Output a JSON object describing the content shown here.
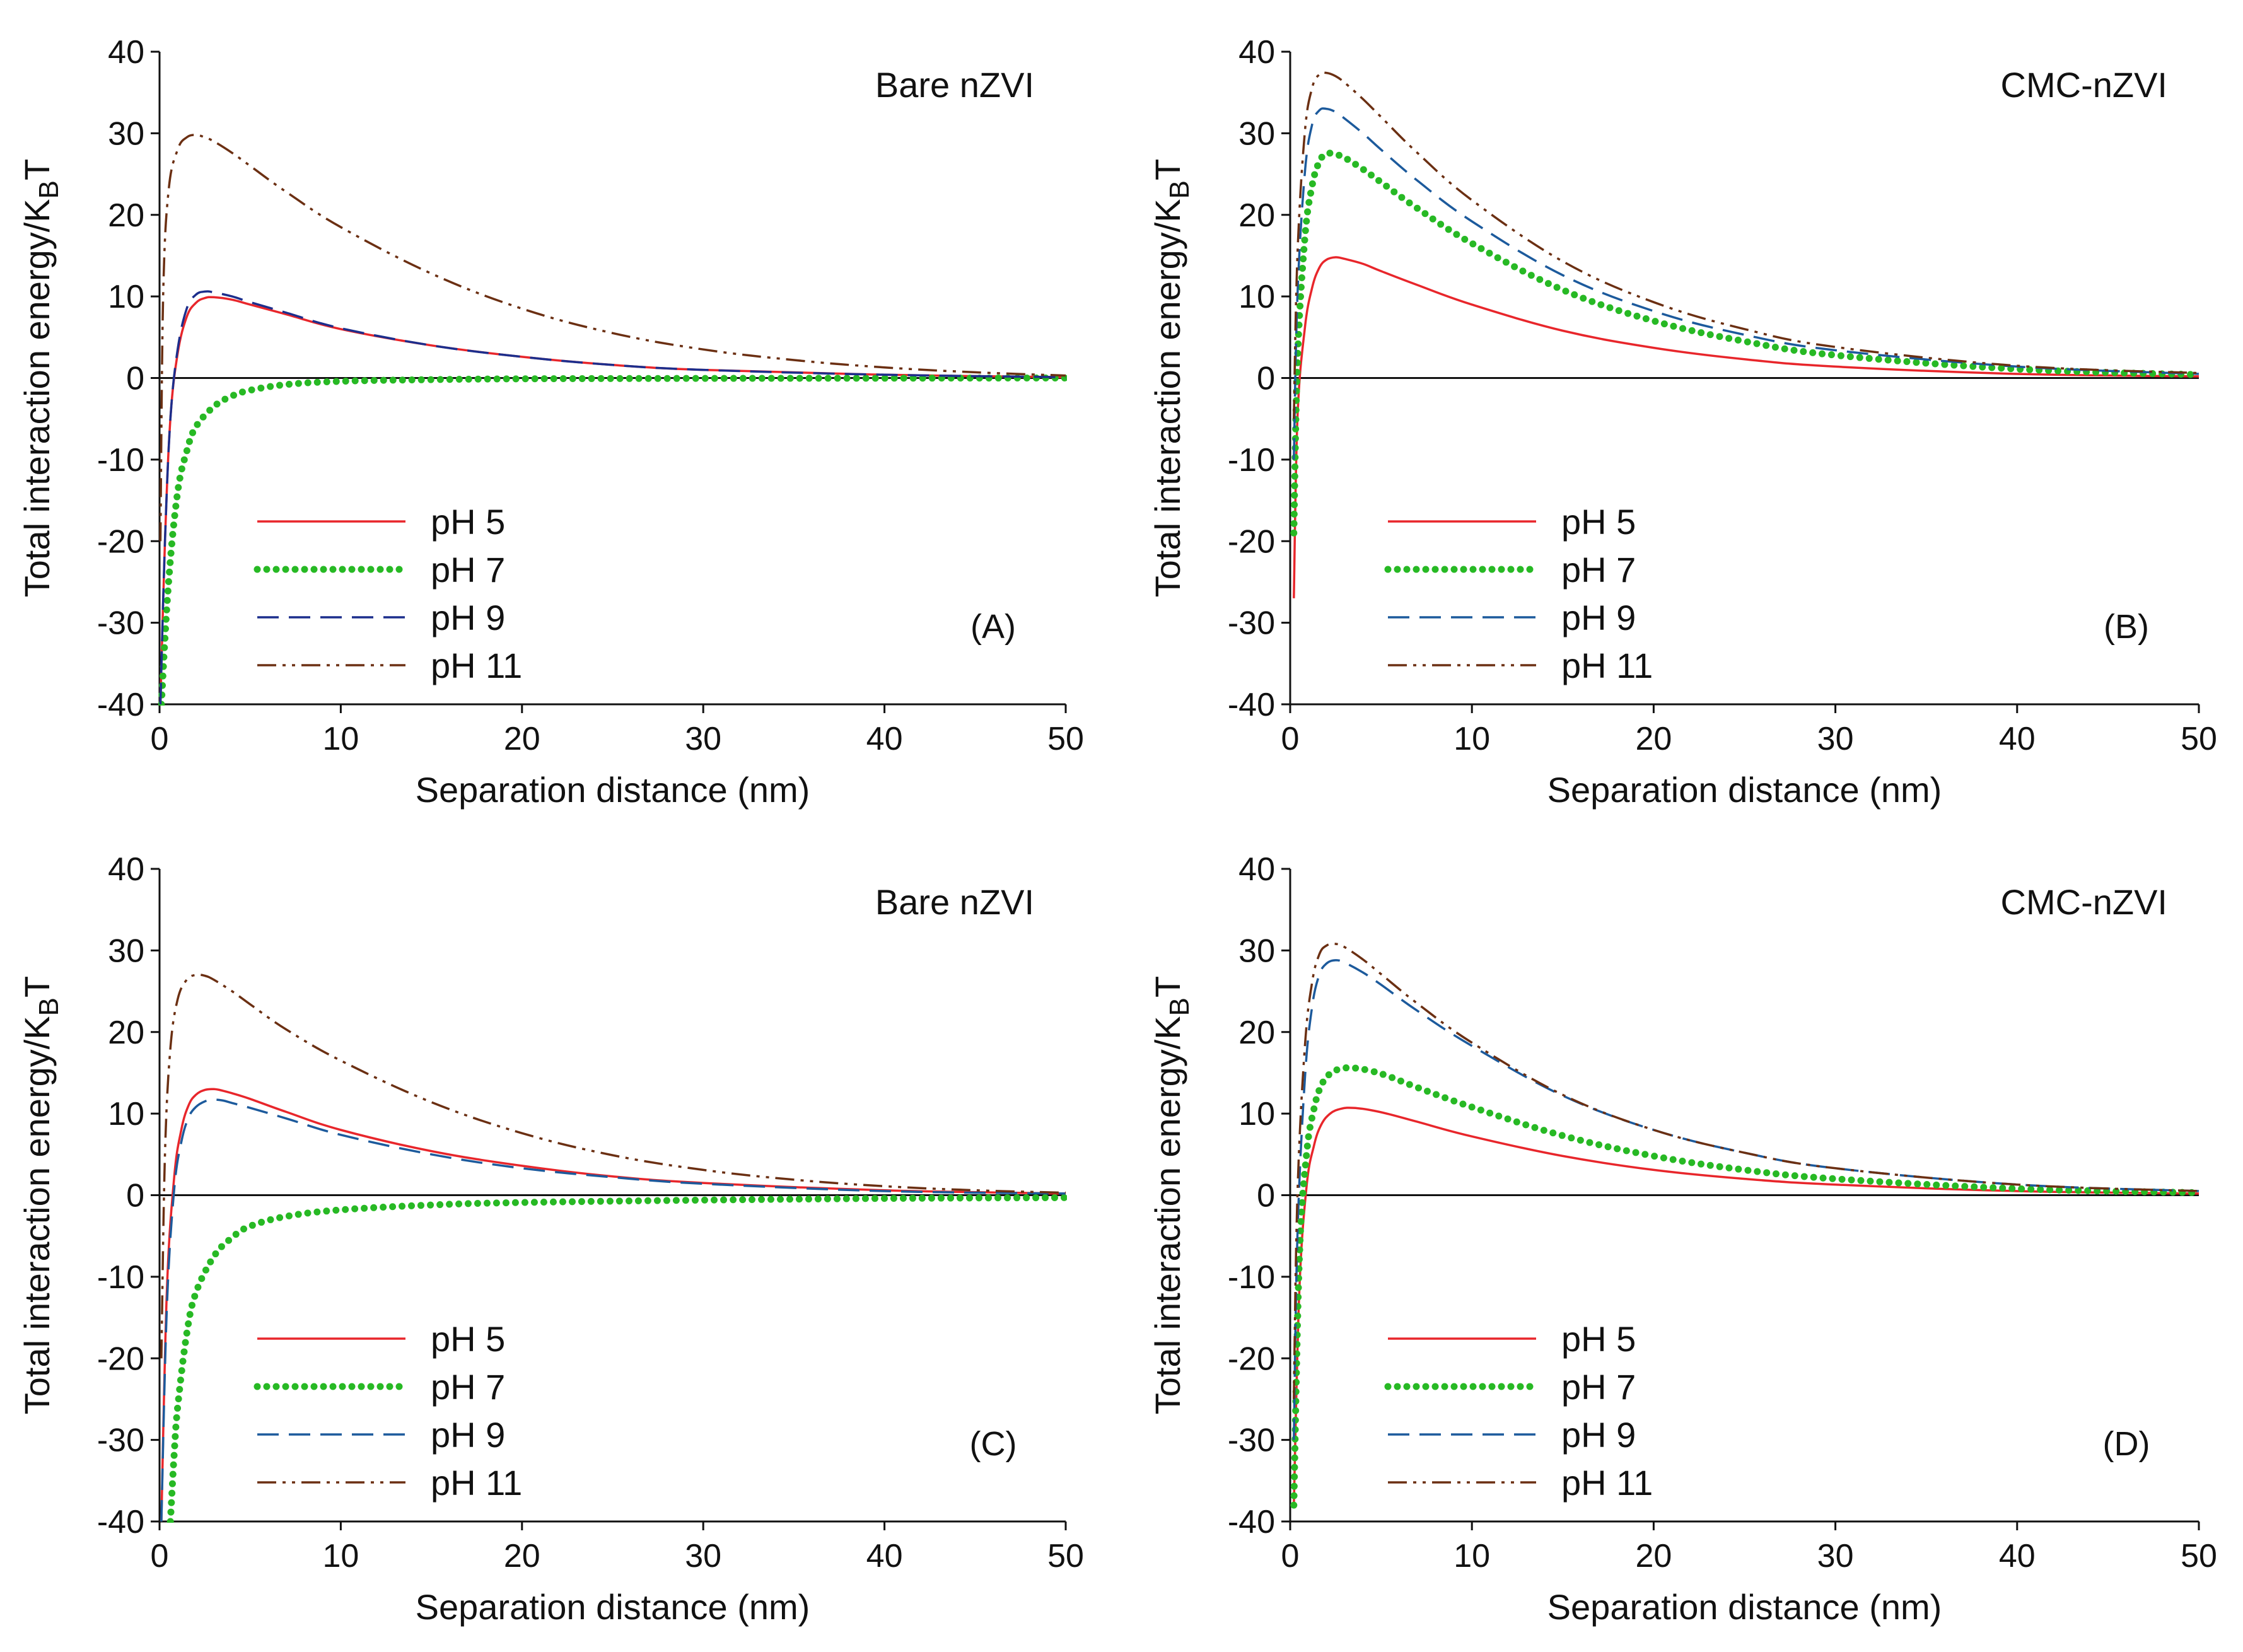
{
  "figure": {
    "accent_colors": {
      "pH 5": "#e8262b",
      "pH 7": "#27b924",
      "pH 9": "#1c2e8c",
      "pH 11": "#6b2f12",
      "axis": "#111111"
    }
  },
  "chart_data": [
    {
      "id": "A",
      "type": "line",
      "title": "Bare nZVI",
      "panel_label": "(A)",
      "xlabel": "Separation distance (nm)",
      "ylabel": "Total interaction energy/K",
      "ylabel_sub": "B",
      "ylabel_tail": "T",
      "xlim": [
        0,
        50
      ],
      "ylim": [
        -40,
        40
      ],
      "xticks": [
        0,
        10,
        20,
        30,
        40,
        50
      ],
      "yticks": [
        40,
        30,
        20,
        10,
        0,
        -10,
        -20,
        -30,
        -40
      ],
      "series": [
        {
          "name": "pH 5",
          "style": "solid",
          "color": "#e8262b",
          "x": [
            0.05,
            0.3,
            0.6,
            1,
            1.5,
            2,
            2.5,
            3,
            4,
            5,
            7,
            10,
            15,
            20,
            25,
            30,
            40,
            50
          ],
          "y": [
            -45,
            -20,
            -5,
            3,
            7.5,
            9.2,
            9.8,
            9.9,
            9.6,
            9.0,
            7.8,
            6.0,
            4.0,
            2.6,
            1.6,
            1.0,
            0.4,
            0.1
          ]
        },
        {
          "name": "pH 7",
          "style": "dotted",
          "color": "#27b924",
          "x": [
            0.1,
            0.5,
            1,
            1.5,
            2,
            3,
            4,
            5,
            7,
            10,
            15,
            20,
            30,
            40,
            50
          ],
          "y": [
            -40,
            -25,
            -14,
            -9,
            -6,
            -3.5,
            -2.2,
            -1.5,
            -0.8,
            -0.4,
            -0.2,
            -0.1,
            -0.05,
            -0.02,
            0
          ]
        },
        {
          "name": "pH 9",
          "style": "dashed",
          "color": "#1c2e8c",
          "x": [
            0.05,
            0.3,
            0.6,
            1,
            1.5,
            2,
            2.5,
            3,
            4,
            5,
            7,
            10,
            15,
            20,
            25,
            30,
            40,
            50
          ],
          "y": [
            -45,
            -20,
            -5,
            3.5,
            8.5,
            10.2,
            10.6,
            10.5,
            10.0,
            9.3,
            8.0,
            6.1,
            4.0,
            2.6,
            1.6,
            1.0,
            0.4,
            0.1
          ]
        },
        {
          "name": "pH 11",
          "style": "dashdotdot",
          "color": "#6b2f12",
          "x": [
            0.05,
            0.2,
            0.5,
            1,
            1.5,
            2,
            2.5,
            3,
            4,
            5,
            7,
            10,
            15,
            20,
            25,
            30,
            35,
            40,
            45,
            50
          ],
          "y": [
            -20,
            10,
            23,
            28,
            29.5,
            29.8,
            29.5,
            29.0,
            27.6,
            26.0,
            22.8,
            18.5,
            12.8,
            8.5,
            5.5,
            3.5,
            2.2,
            1.3,
            0.7,
            0.3
          ]
        }
      ],
      "legend": [
        "pH 5",
        "pH 7",
        "pH 9",
        "pH 11"
      ]
    },
    {
      "id": "B",
      "type": "line",
      "title": "CMC-nZVI",
      "panel_label": "(B)",
      "xlabel": "Separation distance (nm)",
      "ylabel": "Total interaction energy/K",
      "ylabel_sub": "B",
      "ylabel_tail": "T",
      "xlim": [
        0,
        50
      ],
      "ylim": [
        -40,
        40
      ],
      "xticks": [
        0,
        10,
        20,
        30,
        40,
        50
      ],
      "yticks": [
        40,
        30,
        20,
        10,
        0,
        -10,
        -20,
        -30,
        -40
      ],
      "series": [
        {
          "name": "pH 5",
          "style": "solid",
          "color": "#e8262b",
          "x": [
            0.2,
            0.4,
            0.8,
            1.2,
            1.6,
            2,
            2.5,
            3,
            4,
            5,
            7,
            10,
            15,
            20,
            25,
            30,
            40,
            50
          ],
          "y": [
            -27,
            -5,
            6,
            11,
            13.5,
            14.5,
            14.8,
            14.6,
            14.0,
            13.1,
            11.4,
            9.0,
            5.8,
            3.7,
            2.3,
            1.4,
            0.5,
            0.2
          ]
        },
        {
          "name": "pH 7",
          "style": "dotted",
          "color": "#27b924",
          "x": [
            0.2,
            0.4,
            0.8,
            1.2,
            1.6,
            2,
            2.5,
            3,
            4,
            5,
            7,
            10,
            15,
            20,
            25,
            30,
            40,
            50
          ],
          "y": [
            -19,
            2,
            17,
            23.5,
            26.5,
            27.5,
            27.4,
            27.0,
            25.6,
            24.0,
            20.8,
            16.5,
            10.8,
            7.0,
            4.5,
            2.8,
            1.1,
            0.4
          ]
        },
        {
          "name": "pH 9",
          "style": "dashed",
          "color": "#1c5a9c",
          "x": [
            0.2,
            0.4,
            0.8,
            1.2,
            1.6,
            2,
            2.5,
            3,
            4,
            5,
            7,
            10,
            15,
            20,
            25,
            30,
            40,
            50
          ],
          "y": [
            -10,
            10,
            25,
            31,
            32.8,
            33.0,
            32.6,
            31.8,
            30.0,
            28.0,
            24.2,
            19.2,
            12.6,
            8.2,
            5.3,
            3.4,
            1.4,
            0.5
          ]
        },
        {
          "name": "pH 11",
          "style": "dashdotdot",
          "color": "#6b2f12",
          "x": [
            0.2,
            0.4,
            0.8,
            1.2,
            1.6,
            2,
            2.5,
            3,
            4,
            5,
            7,
            10,
            15,
            20,
            25,
            30,
            40,
            50
          ],
          "y": [
            -5,
            15,
            30,
            35.5,
            37.2,
            37.4,
            37.0,
            36.2,
            34.2,
            32.0,
            27.6,
            21.8,
            14.3,
            9.3,
            6.0,
            3.8,
            1.5,
            0.6
          ]
        }
      ],
      "legend": [
        "pH 5",
        "pH 7",
        "pH 9",
        "pH 11"
      ]
    },
    {
      "id": "C",
      "type": "line",
      "title": "Bare nZVI",
      "panel_label": "(C)",
      "xlabel": "Separation distance (nm)",
      "ylabel": "Total interaction energy/K",
      "ylabel_sub": "B",
      "ylabel_tail": "T",
      "xlim": [
        0,
        50
      ],
      "ylim": [
        -40,
        40
      ],
      "xticks": [
        0,
        10,
        20,
        30,
        40,
        50
      ],
      "yticks": [
        40,
        30,
        20,
        10,
        0,
        -10,
        -20,
        -30,
        -40
      ],
      "series": [
        {
          "name": "pH 5",
          "style": "solid",
          "color": "#e8262b",
          "x": [
            0.1,
            0.4,
            0.8,
            1.2,
            1.6,
            2,
            2.5,
            3,
            3.5,
            4,
            5,
            7,
            10,
            15,
            20,
            25,
            30,
            40,
            50
          ],
          "y": [
            -40,
            -12,
            2,
            8,
            11,
            12.3,
            12.9,
            13.0,
            12.8,
            12.5,
            11.8,
            10.2,
            8.0,
            5.4,
            3.6,
            2.3,
            1.5,
            0.6,
            0.2
          ]
        },
        {
          "name": "pH 7",
          "style": "dotted",
          "color": "#27b924",
          "x": [
            0.6,
            0.8,
            1,
            1.5,
            2,
            3,
            4,
            5,
            7,
            10,
            15,
            20,
            30,
            40,
            50
          ],
          "y": [
            -40,
            -32,
            -26,
            -17,
            -12,
            -7.5,
            -5.2,
            -3.8,
            -2.6,
            -1.8,
            -1.2,
            -0.9,
            -0.6,
            -0.4,
            -0.3
          ]
        },
        {
          "name": "pH 9",
          "style": "dashed",
          "color": "#1c5a9c",
          "x": [
            0.1,
            0.4,
            0.8,
            1.2,
            1.6,
            2,
            2.5,
            3,
            3.5,
            4,
            5,
            7,
            10,
            15,
            20,
            25,
            30,
            40,
            50
          ],
          "y": [
            -40,
            -14,
            0.5,
            6.5,
            9.5,
            10.8,
            11.5,
            11.7,
            11.6,
            11.3,
            10.7,
            9.4,
            7.4,
            5.0,
            3.3,
            2.2,
            1.4,
            0.5,
            0.2
          ]
        },
        {
          "name": "pH 11",
          "style": "dashdotdot",
          "color": "#6b2f12",
          "x": [
            0.1,
            0.3,
            0.6,
            1,
            1.5,
            2,
            2.5,
            3,
            4,
            5,
            7,
            10,
            15,
            20,
            25,
            30,
            35,
            40,
            45,
            50
          ],
          "y": [
            -20,
            5,
            18,
            24,
            26.4,
            27.0,
            26.9,
            26.4,
            25.0,
            23.4,
            20.3,
            16.5,
            11.4,
            7.6,
            4.9,
            3.1,
            1.9,
            1.1,
            0.6,
            0.3
          ]
        }
      ],
      "legend": [
        "pH 5",
        "pH 7",
        "pH 9",
        "pH 11"
      ]
    },
    {
      "id": "D",
      "type": "line",
      "title": "CMC-nZVI",
      "panel_label": "(D)",
      "xlabel": "Separation distance (nm)",
      "ylabel": "Total interaction energy/K",
      "ylabel_sub": "B",
      "ylabel_tail": "T",
      "xlim": [
        0,
        50
      ],
      "ylim": [
        -40,
        40
      ],
      "xticks": [
        0,
        10,
        20,
        30,
        40,
        50
      ],
      "yticks": [
        40,
        30,
        20,
        10,
        0,
        -10,
        -20,
        -30,
        -40
      ],
      "series": [
        {
          "name": "pH 5",
          "style": "solid",
          "color": "#e8262b",
          "x": [
            0.2,
            0.5,
            0.9,
            1.3,
            1.7,
            2.2,
            2.8,
            3.5,
            4.5,
            5.5,
            7,
            10,
            15,
            20,
            25,
            30,
            40,
            50
          ],
          "y": [
            -38,
            -12,
            1,
            6,
            8.6,
            10.0,
            10.6,
            10.7,
            10.4,
            9.9,
            9.0,
            7.2,
            4.8,
            3.1,
            2.0,
            1.3,
            0.5,
            0.2
          ]
        },
        {
          "name": "pH 7",
          "style": "dotted",
          "color": "#27b924",
          "x": [
            0.2,
            0.5,
            0.9,
            1.3,
            1.7,
            2.2,
            2.8,
            3.5,
            4.5,
            5.5,
            7,
            10,
            15,
            20,
            25,
            30,
            40,
            50
          ],
          "y": [
            -38,
            -8,
            5,
            10.5,
            13.4,
            14.9,
            15.5,
            15.6,
            15.2,
            14.5,
            13.2,
            10.8,
            7.3,
            4.8,
            3.1,
            2.0,
            0.8,
            0.3
          ]
        },
        {
          "name": "pH 9",
          "style": "dashed",
          "color": "#1c5a9c",
          "x": [
            0.2,
            0.4,
            0.8,
            1.2,
            1.6,
            2,
            2.5,
            3,
            4,
            5,
            7,
            10,
            15,
            20,
            25,
            30,
            40,
            50
          ],
          "y": [
            -30,
            -5,
            14,
            23,
            27,
            28.4,
            28.8,
            28.5,
            27.3,
            25.8,
            22.6,
            18.3,
            12.2,
            8.0,
            5.2,
            3.3,
            1.3,
            0.5
          ]
        },
        {
          "name": "pH 11",
          "style": "dashdotdot",
          "color": "#6b2f12",
          "x": [
            0.2,
            0.4,
            0.8,
            1.2,
            1.6,
            2,
            2.5,
            3,
            4,
            5,
            7,
            10,
            15,
            20,
            25,
            30,
            40,
            50
          ],
          "y": [
            -25,
            0,
            18,
            26,
            29.5,
            30.6,
            30.8,
            30.4,
            28.9,
            27.1,
            23.5,
            18.7,
            12.3,
            8.0,
            5.2,
            3.3,
            1.3,
            0.5
          ]
        }
      ],
      "legend": [
        "pH 5",
        "pH 7",
        "pH 9",
        "pH 11"
      ]
    }
  ]
}
